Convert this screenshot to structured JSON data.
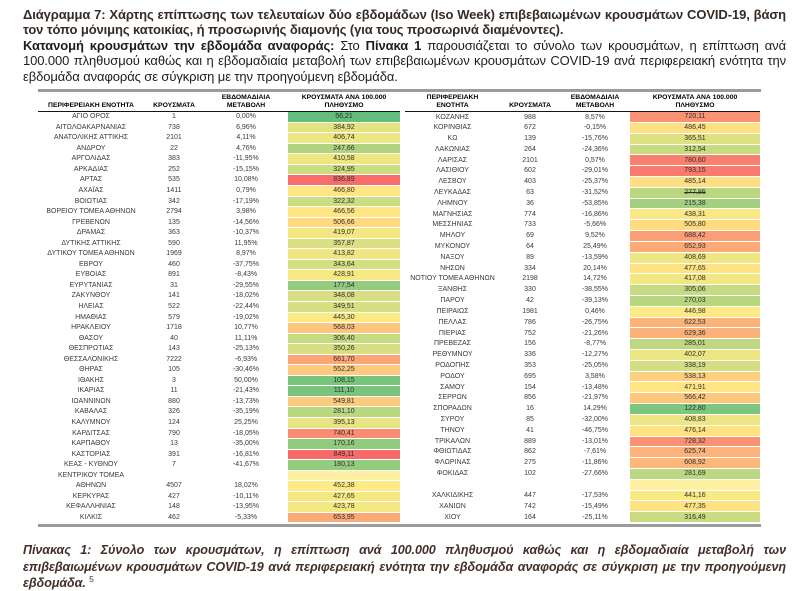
{
  "title": "Διάγραμμα 7: Χάρτης επίπτωσης των τελευταίων δύο εβδομάδων (Iso Week) επιβεβαιωμένων κρουσμάτων COVID-19, βάση τον τόπο μόνιμης κατοικίας, ή προσωρινής διαμονής (για τους προσωρινά διαμένοντες).",
  "intro": {
    "lead": "Κατανομή κρουσμάτων την εβδομάδα αναφοράς:",
    "mid": " Στο ",
    "ref": "Πίνακα 1",
    "rest": " παρουσιάζεται το σύνολο των κρουσμάτων, η επίπτωση ανά 100.000 πληθυσμού καθώς και η εβδομαδιαία μεταβολή των επιβεβαιωμένων κρουσμάτων COVID-19 ανά περιφερειακή ενότητα την εβδομάδα αναφοράς σε σύγκριση με την προηγούμενη εβδομάδα."
  },
  "caption": {
    "text": "Πίνακας 1: Σύνολο των κρουσμάτων, η επίπτωση ανά 100.000 πληθυσμού καθώς και η εβδομαδιαία μεταβολή των επιβεβαιωμένων κρουσμάτων COVID-19 ανά περιφερειακή ενότητα την εβδομάδα αναφοράς σε σύγκριση με την προηγούμενη εβδομάδα.",
    "footnote_marker": "5"
  },
  "table": {
    "left_headers": [
      "ΠΕΡΙΦΕΡΕΙΑΚΗ ΕΝΟΤΗΤΑ",
      "ΚΡΟΥΣΜΑΤΑ",
      "ΕΒΔΟΜΑΔΙΑΙΑ\nΜΕΤΑΒΟΛΗ",
      "ΚΡΟΥΣΜΑΤΑ ΑΝΑ 100.000\nΠΛΗΘΥΣΜΟ"
    ],
    "right_headers": [
      "ΠΕΡΙΦΕΡΕΙΑΚΗ\nΕΝΟΤΗΤΑ",
      "ΚΡΟΥΣΜΑΤΑ",
      "ΕΒΔΟΜΑΔΙΑΙΑ\nΜΕΤΑΒΟΛΗ",
      "ΚΡΟΥΣΜΑΤΑ ΑΝΑ 100.000\nΠΛΗΘΥΣΜΟ"
    ],
    "color_scale": {
      "min_value": 56.21,
      "mid_value": 452.66,
      "max_value": 849.11,
      "min_color": "#63be7b",
      "mid_color": "#ffeb84",
      "max_color": "#f8696b",
      "filler_color": "#fff1a3"
    },
    "left_rows": [
      {
        "name": "ΑΓΙΟ ΟΡΟΣ",
        "cases": "1",
        "change": "0,00%",
        "incidence": "56,21"
      },
      {
        "name": "ΑΙΤΩΛΟΑΚΑΡΝΑΝΙΑΣ",
        "cases": "738",
        "change": "6,96%",
        "incidence": "384,92"
      },
      {
        "name": "ΑΝΑΤΟΛΙΚΗΣ ΑΤΤΙΚΗΣ",
        "cases": "2101",
        "change": "4,11%",
        "incidence": "406,74"
      },
      {
        "name": "ΑΝΔΡΟΥ",
        "cases": "22",
        "change": "4,76%",
        "incidence": "247,66"
      },
      {
        "name": "ΑΡΓΟΛΙΔΑΣ",
        "cases": "383",
        "change": "-11,95%",
        "incidence": "410,58"
      },
      {
        "name": "ΑΡΚΑΔΙΑΣ",
        "cases": "252",
        "change": "-15,15%",
        "incidence": "324,95"
      },
      {
        "name": "ΑΡΤΑΣ",
        "cases": "535",
        "change": "10,08%",
        "incidence": "836,89"
      },
      {
        "name": "ΑΧΑΪΑΣ",
        "cases": "1411",
        "change": "0,79%",
        "incidence": "466,80"
      },
      {
        "name": "ΒΟΙΩΤΙΑΣ",
        "cases": "342",
        "change": "-17,19%",
        "incidence": "322,32"
      },
      {
        "name": "ΒΟΡΕΙΟΥ ΤΟΜΕΑ ΑΘΗΝΩΝ",
        "cases": "2794",
        "change": "3,98%",
        "incidence": "466,56"
      },
      {
        "name": "ΓΡΕΒΕΝΩΝ",
        "cases": "135",
        "change": "-14,56%",
        "incidence": "506,66"
      },
      {
        "name": "ΔΡΑΜΑΣ",
        "cases": "363",
        "change": "-10,37%",
        "incidence": "419,07"
      },
      {
        "name": "ΔΥΤΙΚΗΣ ΑΤΤΙΚΗΣ",
        "cases": "590",
        "change": "11,95%",
        "incidence": "357,87"
      },
      {
        "name": "ΔΥΤΙΚΟΥ ΤΟΜΕΑ ΑΘΗΝΩΝ",
        "cases": "1969",
        "change": "8,97%",
        "incidence": "413,82"
      },
      {
        "name": "ΕΒΡΟΥ",
        "cases": "460",
        "change": "-37,75%",
        "incidence": "343,64"
      },
      {
        "name": "ΕΥΒΟΙΑΣ",
        "cases": "891",
        "change": "-8,43%",
        "incidence": "428,91"
      },
      {
        "name": "ΕΥΡΥΤΑΝΙΑΣ",
        "cases": "31",
        "change": "-29,55%",
        "incidence": "177,54"
      },
      {
        "name": "ΖΑΚΥΝΘΟΥ",
        "cases": "141",
        "change": "-18,02%",
        "incidence": "348,08"
      },
      {
        "name": "ΗΛΕΙΑΣ",
        "cases": "522",
        "change": "-22,44%",
        "incidence": "349,51"
      },
      {
        "name": "ΗΜΑΘΙΑΣ",
        "cases": "579",
        "change": "-19,02%",
        "incidence": "445,30"
      },
      {
        "name": "ΗΡΑΚΛΕΙΟΥ",
        "cases": "1718",
        "change": "10,77%",
        "incidence": "568,03"
      },
      {
        "name": "ΘΑΣΟΥ",
        "cases": "40",
        "change": "11,11%",
        "incidence": "306,40"
      },
      {
        "name": "ΘΕΣΠΡΩΤΙΑΣ",
        "cases": "143",
        "change": "-25,13%",
        "incidence": "350,26"
      },
      {
        "name": "ΘΕΣΣΑΛΟΝΙΚΗΣ",
        "cases": "7222",
        "change": "-6,93%",
        "incidence": "661,70"
      },
      {
        "name": "ΘΗΡΑΣ",
        "cases": "105",
        "change": "-30,46%",
        "incidence": "552,25"
      },
      {
        "name": "ΙΘΑΚΗΣ",
        "cases": "3",
        "change": "50,00%",
        "incidence": "108,15"
      },
      {
        "name": "ΙΚΑΡΙΑΣ",
        "cases": "11",
        "change": "-21,43%",
        "incidence": "111,10"
      },
      {
        "name": "ΙΩΑΝΝΙΝΩΝ",
        "cases": "880",
        "change": "-13,73%",
        "incidence": "549,81"
      },
      {
        "name": "ΚΑΒΑΛΑΣ",
        "cases": "326",
        "change": "-35,19%",
        "incidence": "281,10"
      },
      {
        "name": "ΚΑΛΥΜΝΟΥ",
        "cases": "124",
        "change": "25,25%",
        "incidence": "395,13"
      },
      {
        "name": "ΚΑΡΔΙΤΣΑΣ",
        "cases": "790",
        "change": "-18,05%",
        "incidence": "740,41"
      },
      {
        "name": "ΚΑΡΠΑΘΟΥ",
        "cases": "13",
        "change": "-35,00%",
        "incidence": "170,16"
      },
      {
        "name": "ΚΑΣΤΟΡΙΑΣ",
        "cases": "391",
        "change": "-16,81%",
        "incidence": "849,11"
      },
      {
        "name": "ΚΕΑΣ - ΚΥΘΝΟΥ",
        "cases": "7",
        "change": "-41,67%",
        "incidence": "180,13"
      },
      {
        "name": "ΚΕΝΤΡΙΚΟΥ ΤΟΜΕΑ",
        "cases": "",
        "change": "",
        "incidence": "",
        "filler": true
      },
      {
        "name": "ΑΘΗΝΩΝ",
        "cases": "4507",
        "change": "18,02%",
        "incidence": "452,38"
      },
      {
        "name": "ΚΕΡΚΥΡΑΣ",
        "cases": "427",
        "change": "-10,11%",
        "incidence": "427,65"
      },
      {
        "name": "ΚΕΦΑΛΛΗΝΙΑΣ",
        "cases": "148",
        "change": "-13,95%",
        "incidence": "423,78"
      },
      {
        "name": "ΚΙΛΚΙΣ",
        "cases": "462",
        "change": "-5,33%",
        "incidence": "653,95"
      }
    ],
    "right_rows": [
      {
        "name": "ΚΟΖΑΝΗΣ",
        "cases": "988",
        "change": "8,57%",
        "incidence": "720,11"
      },
      {
        "name": "ΚΟΡΙΝΘΙΑΣ",
        "cases": "672",
        "change": "-0,15%",
        "incidence": "486,45"
      },
      {
        "name": "ΚΩ",
        "cases": "139",
        "change": "-15,76%",
        "incidence": "365,51"
      },
      {
        "name": "ΛΑΚΩΝΙΑΣ",
        "cases": "264",
        "change": "-24,36%",
        "incidence": "312,54"
      },
      {
        "name": "ΛΑΡΙΣΑΣ",
        "cases": "2101",
        "change": "0,57%",
        "incidence": "780,60"
      },
      {
        "name": "ΛΑΣΙΘΙΟΥ",
        "cases": "602",
        "change": "-29,01%",
        "incidence": "793,15"
      },
      {
        "name": "ΛΕΣΒΟΥ",
        "cases": "403",
        "change": "-25,37%",
        "incidence": "485,14"
      },
      {
        "name": "ΛΕΥΚΑΔΑΣ",
        "cases": "63",
        "change": "-31,52%",
        "incidence": "277,86",
        "strike": true
      },
      {
        "name": "ΛΗΜΝΟΥ",
        "cases": "36",
        "change": "-53,85%",
        "incidence": "215,38"
      },
      {
        "name": "ΜΑΓΝΗΣΙΑΣ",
        "cases": "774",
        "change": "-16,86%",
        "incidence": "438,31"
      },
      {
        "name": "ΜΕΣΣΗΝΙΑΣ",
        "cases": "733",
        "change": "-5,66%",
        "incidence": "505,80"
      },
      {
        "name": "ΜΗΛΟΥ",
        "cases": "69",
        "change": "9,52%",
        "incidence": "688,42"
      },
      {
        "name": "ΜΥΚΟΝΟΥ",
        "cases": "64",
        "change": "25,49%",
        "incidence": "652,93"
      },
      {
        "name": "ΝΑΞΟΥ",
        "cases": "89",
        "change": "-13,59%",
        "incidence": "408,69"
      },
      {
        "name": "ΝΗΣΩΝ",
        "cases": "334",
        "change": "20,14%",
        "incidence": "477,65"
      },
      {
        "name": "ΝΟΤΙΟΥ ΤΟΜΕΑ ΑΘΗΝΩΝ",
        "cases": "2198",
        "change": "14,72%",
        "incidence": "417,08"
      },
      {
        "name": "ΞΑΝΘΗΣ",
        "cases": "330",
        "change": "-38,55%",
        "incidence": "305,06"
      },
      {
        "name": "ΠΑΡΟΥ",
        "cases": "42",
        "change": "-39,13%",
        "incidence": "270,03"
      },
      {
        "name": "ΠΕΙΡΑΙΩΣ",
        "cases": "1981",
        "change": "0,46%",
        "incidence": "446,98"
      },
      {
        "name": "ΠΕΛΛΑΣ",
        "cases": "786",
        "change": "-26,75%",
        "incidence": "622,53"
      },
      {
        "name": "ΠΙΕΡΙΑΣ",
        "cases": "752",
        "change": "-21,26%",
        "incidence": "629,36"
      },
      {
        "name": "ΠΡΕΒΕΖΑΣ",
        "cases": "156",
        "change": "-8,77%",
        "incidence": "285,01"
      },
      {
        "name": "ΡΕΘΥΜΝΟΥ",
        "cases": "336",
        "change": "-12,27%",
        "incidence": "402,07"
      },
      {
        "name": "ΡΟΔΟΠΗΣ",
        "cases": "353",
        "change": "-25,05%",
        "incidence": "338,19"
      },
      {
        "name": "ΡΟΔΟΥ",
        "cases": "695",
        "change": "3,58%",
        "incidence": "538,13"
      },
      {
        "name": "ΣΑΜΟΥ",
        "cases": "154",
        "change": "-13,48%",
        "incidence": "471,91"
      },
      {
        "name": "ΣΕΡΡΩΝ",
        "cases": "856",
        "change": "-21,97%",
        "incidence": "566,42"
      },
      {
        "name": "ΣΠΟΡΑΔΩΝ",
        "cases": "16",
        "change": "14,29%",
        "incidence": "122,80"
      },
      {
        "name": "ΣΥΡΟΥ",
        "cases": "85",
        "change": "-32,00%",
        "incidence": "408,83"
      },
      {
        "name": "ΤΗΝΟΥ",
        "cases": "41",
        "change": "-46,75%",
        "incidence": "476,14"
      },
      {
        "name": "ΤΡΙΚΑΛΩΝ",
        "cases": "889",
        "change": "-13,01%",
        "incidence": "728,32"
      },
      {
        "name": "ΦΘΙΩΤΙΔΑΣ",
        "cases": "862",
        "change": "-7,61%",
        "incidence": "625,74"
      },
      {
        "name": "ΦΛΩΡΙΝΑΣ",
        "cases": "275",
        "change": "-11,86%",
        "incidence": "608,92"
      },
      {
        "name": "ΦΟΚΙΔΑΣ",
        "cases": "102",
        "change": "-27,66%",
        "incidence": "281,69"
      },
      {
        "name": "",
        "cases": "",
        "change": "",
        "incidence": "",
        "filler": true
      },
      {
        "name": "ΧΑΛΚΙΔΙΚΗΣ",
        "cases": "447",
        "change": "-17,53%",
        "incidence": "441,16"
      },
      {
        "name": "ΧΑΝΙΩΝ",
        "cases": "742",
        "change": "-15,49%",
        "incidence": "477,35"
      },
      {
        "name": "ΧΙΟΥ",
        "cases": "164",
        "change": "-25,11%",
        "incidence": "316,49"
      }
    ]
  }
}
